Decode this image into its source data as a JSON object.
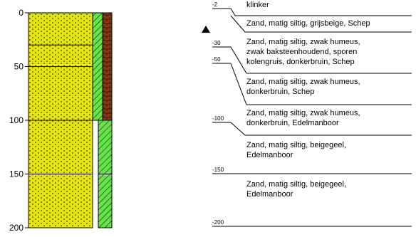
{
  "depth_axis": {
    "ticks": [
      0,
      50,
      100,
      150,
      200
    ],
    "range": [
      0,
      200
    ]
  },
  "colors": {
    "sand": "#e6e600",
    "sand_dots": "#000000",
    "clinker": "#8b3a10",
    "humus_column": "#66e24a",
    "line": "#000000"
  },
  "lithology_layers": [
    {
      "from": 0,
      "to": 30,
      "fill": "sand"
    },
    {
      "from": 30,
      "to": 50,
      "fill": "sand"
    },
    {
      "from": 50,
      "to": 100,
      "fill": "sand"
    },
    {
      "from": 100,
      "to": 150,
      "fill": "sand"
    },
    {
      "from": 150,
      "to": 200,
      "fill": "sand"
    }
  ],
  "clinker_column": {
    "from": 0,
    "to": 100
  },
  "humus_column": {
    "hatched_full": {
      "from": 0,
      "to": 100
    },
    "hatched_light": {
      "from": 100,
      "to": 200
    }
  },
  "groundwater_marker": "triangle-up",
  "descriptions": [
    {
      "depth": -2,
      "depth_label": "-2",
      "lines": [
        "klinker"
      ]
    },
    {
      "depth": 2,
      "lines": [
        "Zand, matig siltig, grijsbeige, Schep"
      ]
    },
    {
      "depth": 30,
      "depth_label": "-30",
      "lines": [
        "Zand, matig siltig, zwak humeus,",
        "zwak baksteenhoudend, sporen",
        "kolengruis, donkerbruin, Schep"
      ]
    },
    {
      "depth": 50,
      "depth_label": "-50",
      "lines": [
        "Zand, matig siltig, zwak humeus,",
        "donkerbruin, Schep"
      ]
    },
    {
      "depth": 100,
      "depth_label": "-100",
      "lines": [
        "Zand, matig siltig, zwak humeus,",
        "donkerbruin, Edelmanboor"
      ]
    },
    {
      "depth": 120,
      "lines": [
        "Zand, matig siltig, beigegeel,",
        "Edelmanboor"
      ]
    },
    {
      "depth": 150,
      "depth_label": "-150",
      "lines": [
        "Zand, matig siltig, beigegeel,",
        "Edelmanboor"
      ]
    },
    {
      "depth": 200,
      "depth_label": "-200",
      "lines": []
    }
  ]
}
